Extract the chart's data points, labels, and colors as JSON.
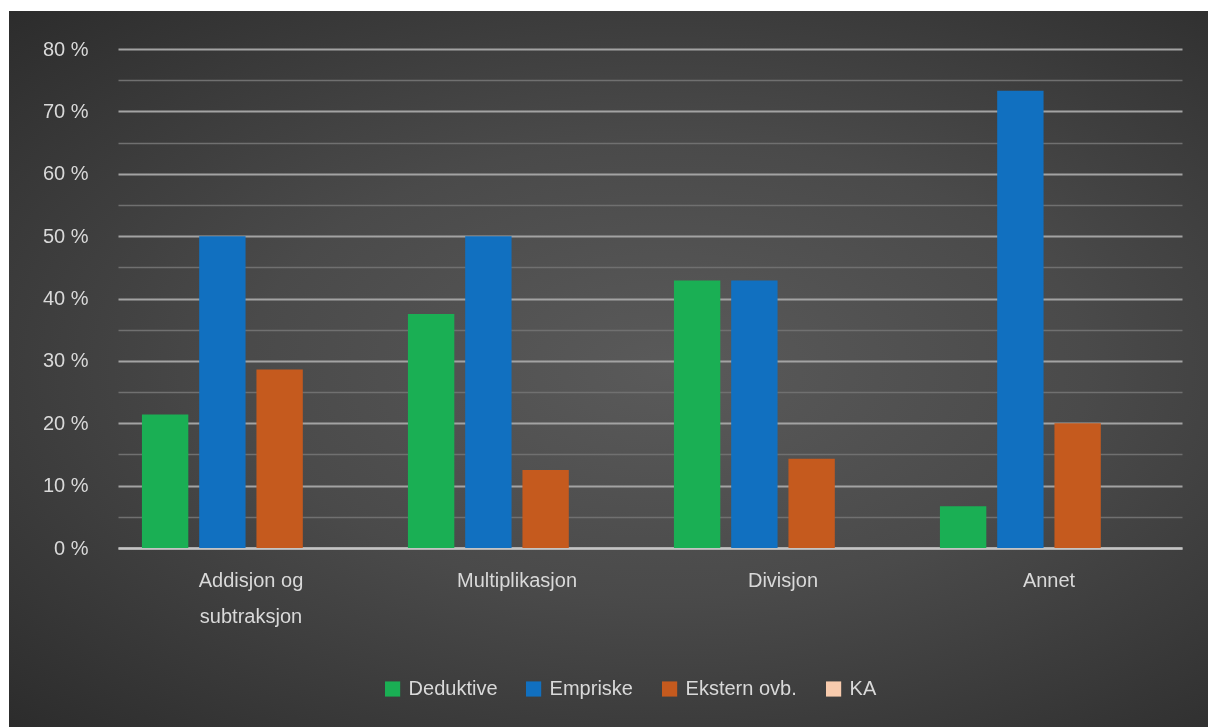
{
  "chart_data": {
    "type": "bar",
    "categories": [
      "Addisjon og subtraksjon",
      "Multiplikasjon",
      "Divisjon",
      "Annet"
    ],
    "series": [
      {
        "name": "Deduktive",
        "color": "#1aaf54",
        "values": [
          21.4,
          37.5,
          42.9,
          6.7
        ]
      },
      {
        "name": "Empriske",
        "color": "#1170c0",
        "values": [
          50,
          50,
          42.9,
          73.3
        ]
      },
      {
        "name": "Ekstern ovb.",
        "color": "#c55a1e",
        "values": [
          28.6,
          12.5,
          14.3,
          20
        ]
      },
      {
        "name": "KA",
        "color": "#f8cbad",
        "values": [
          null,
          null,
          null,
          null
        ]
      }
    ],
    "ylim": [
      0,
      80
    ],
    "yticks": [
      {
        "value": 0,
        "label": "0 %"
      },
      {
        "value": 5,
        "label": null
      },
      {
        "value": 10,
        "label": "10 %"
      },
      {
        "value": 15,
        "label": null
      },
      {
        "value": 20,
        "label": "20 %"
      },
      {
        "value": 25,
        "label": null
      },
      {
        "value": 30,
        "label": "30 %"
      },
      {
        "value": 35,
        "label": null
      },
      {
        "value": 40,
        "label": "40 %"
      },
      {
        "value": 45,
        "label": null
      },
      {
        "value": 50,
        "label": "50 %"
      },
      {
        "value": 55,
        "label": null
      },
      {
        "value": 60,
        "label": "60 %"
      },
      {
        "value": 65,
        "label": null
      },
      {
        "value": 70,
        "label": "70 %"
      },
      {
        "value": 75,
        "label": null
      },
      {
        "value": 80,
        "label": "80 %"
      }
    ],
    "grid": "y",
    "legend": "bottom"
  }
}
